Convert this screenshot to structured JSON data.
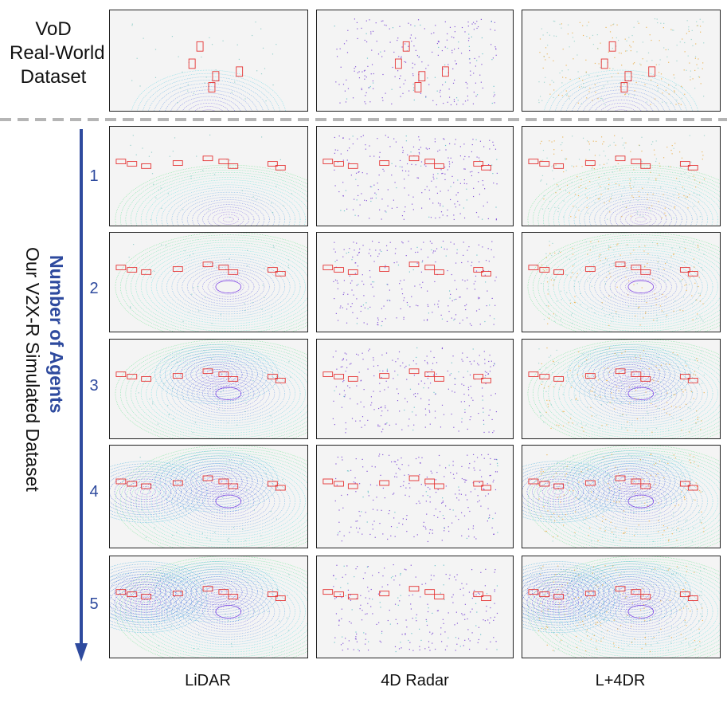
{
  "top_section": {
    "label_lines": [
      "VoD",
      "Real-World",
      "Dataset"
    ]
  },
  "side_title": {
    "highlight": "Number of Agents",
    "subtitle": "Our V2X-R Simulated Dataset"
  },
  "agent_counts": [
    "1",
    "2",
    "3",
    "4",
    "5"
  ],
  "columns": [
    "LiDAR",
    "4D Radar",
    "L+4DR"
  ],
  "colors": {
    "arrow": "#2e4a9e",
    "box": "#e53030",
    "lidar": "#7b3fe4",
    "radar": "#6a2fd0",
    "radar_extra": "#e8a83a"
  }
}
